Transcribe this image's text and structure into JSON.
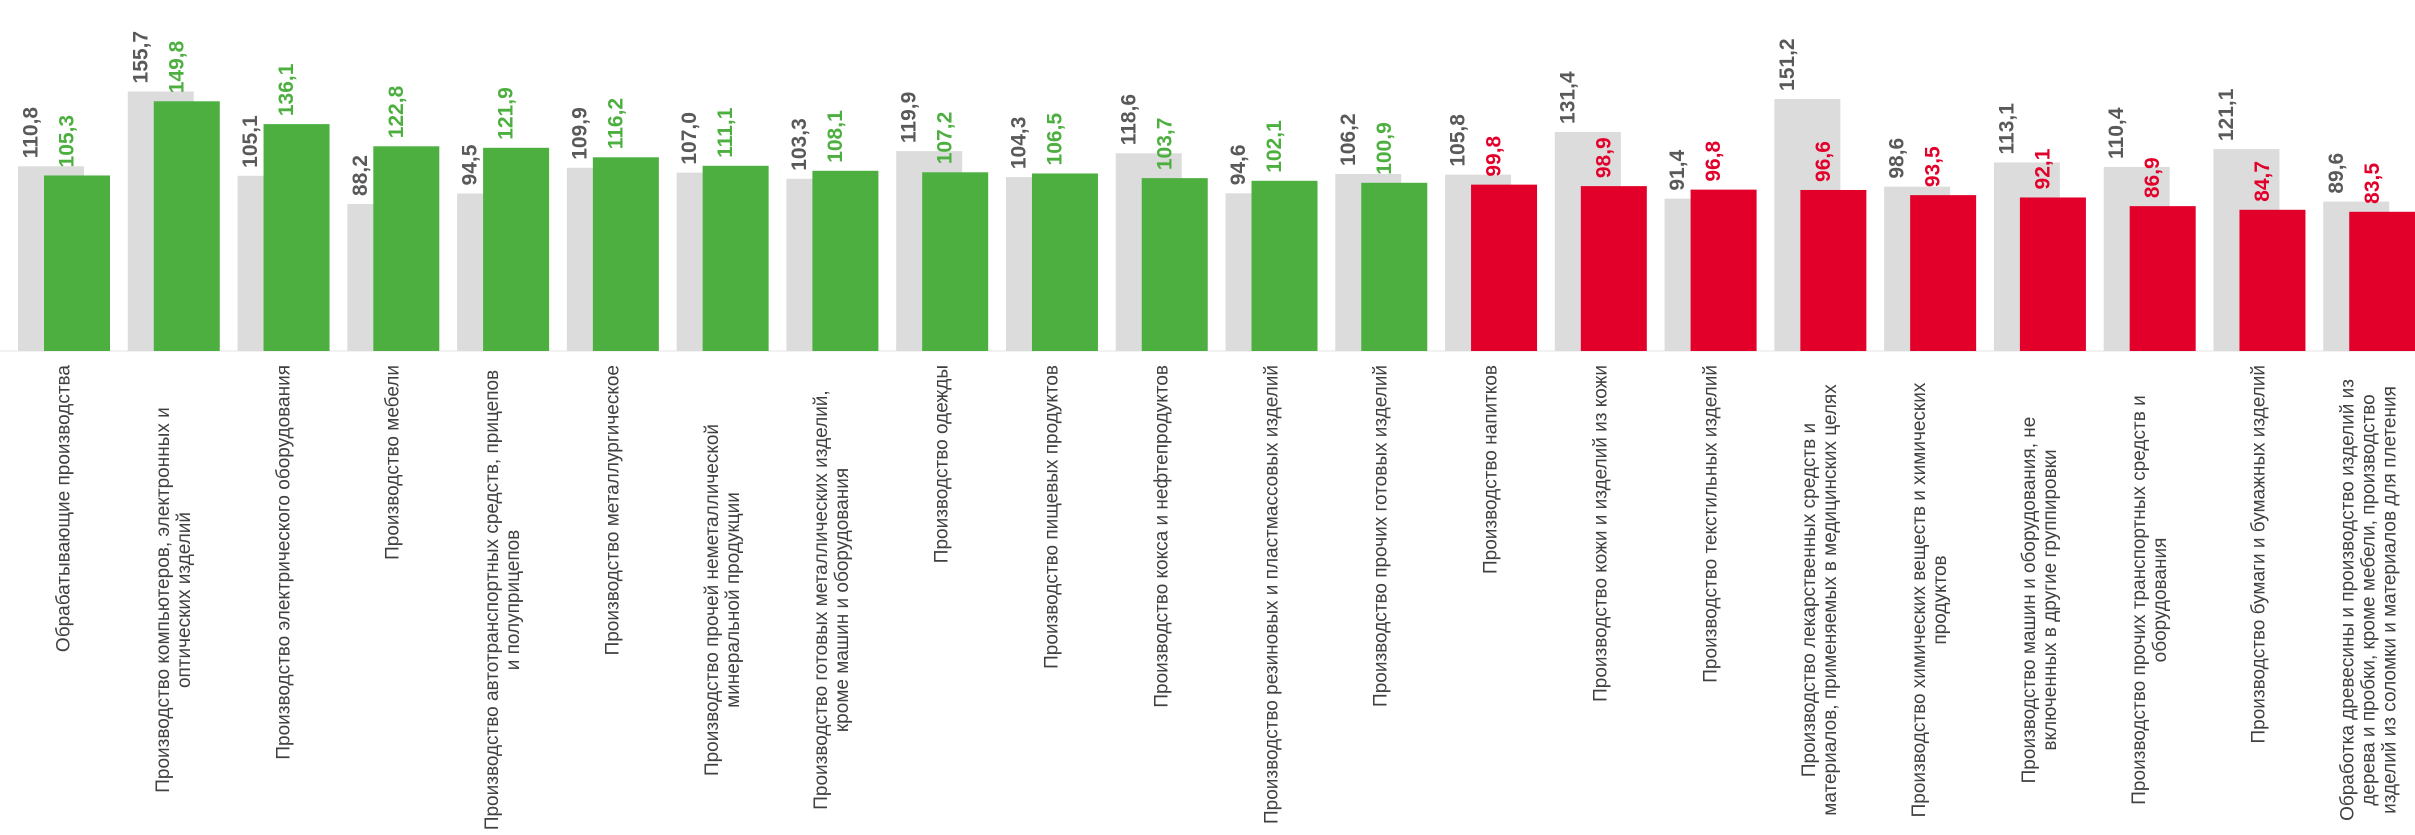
{
  "chart_data": {
    "type": "bar",
    "categories": [
      "Обрабатывающие производства",
      "Производство компьютеров, электронных и оптических изделий",
      "Производство электрического оборудования",
      "Производство мебели",
      "Производство автотранспортных средств, прицепов и полуприцепов",
      "Производство металлургическое",
      "Производство прочей неметаллической минеральной продукции",
      "Производство готовых металлических изделий, кроме машин и оборудования",
      "Производство одежды",
      "Производство пищевых продуктов",
      "Производство кокса и нефтепродуктов",
      "Производство резиновых и пластмассовых изделий",
      "Производство прочих готовых изделий",
      "Производство напитков",
      "Производство кожи и изделий из кожи",
      "Производство текстильных изделий",
      "Производство лекарственных средств и материалов, применяемых в медицинских целях",
      "Производство химических веществ и химических продуктов",
      "Производство машин и оборудования, не включенных в другие группировки",
      "Производство прочих транспортных средств и оборудования",
      "Производство бумаги и бумажных изделий",
      "Обработка древесины и производство изделий из дерева и пробки, кроме мебели, производство изделий из соломки и материалов для плетения"
    ],
    "series": [
      {
        "color": "#dcdcdc",
        "label_color": "#595959",
        "values": [
          110.8,
          155.7,
          105.1,
          88.2,
          94.5,
          109.9,
          107.0,
          103.3,
          119.9,
          104.3,
          118.6,
          94.6,
          106.2,
          105.8,
          131.4,
          91.4,
          151.2,
          98.6,
          113.1,
          110.4,
          121.1,
          89.6
        ],
        "value_labels": [
          "110,8",
          "155,7",
          "105,1",
          "88,2",
          "94,5",
          "109,9",
          "107,0",
          "103,3",
          "119,9",
          "104,3",
          "118,6",
          "94,6",
          "106,2",
          "105,8",
          "131,4",
          "91,4",
          "151,2",
          "98,6",
          "113,1",
          "110,4",
          "121,1",
          "89,6"
        ]
      },
      {
        "colors": [
          "#4caf3f",
          "#4caf3f",
          "#4caf3f",
          "#4caf3f",
          "#4caf3f",
          "#4caf3f",
          "#4caf3f",
          "#4caf3f",
          "#4caf3f",
          "#4caf3f",
          "#4caf3f",
          "#4caf3f",
          "#4caf3f",
          "#e2002a",
          "#e2002a",
          "#e2002a",
          "#e2002a",
          "#e2002a",
          "#e2002a",
          "#e2002a",
          "#e2002a",
          "#e2002a"
        ],
        "values": [
          105.3,
          149.8,
          136.1,
          122.8,
          121.9,
          116.2,
          111.1,
          108.1,
          107.2,
          106.5,
          103.7,
          102.1,
          100.9,
          99.8,
          98.9,
          96.8,
          96.6,
          93.5,
          92.1,
          86.9,
          84.7,
          83.5
        ],
        "value_labels": [
          "105,3",
          "149,8",
          "136,1",
          "122,8",
          "121,9",
          "116,2",
          "111,1",
          "108,1",
          "107,2",
          "106,5",
          "103,7",
          "102,1",
          "100,9",
          "99,8",
          "98,9",
          "96,8",
          "96,6",
          "93,5",
          "92,1",
          "86,9",
          "84,7",
          "83,5"
        ]
      }
    ]
  }
}
